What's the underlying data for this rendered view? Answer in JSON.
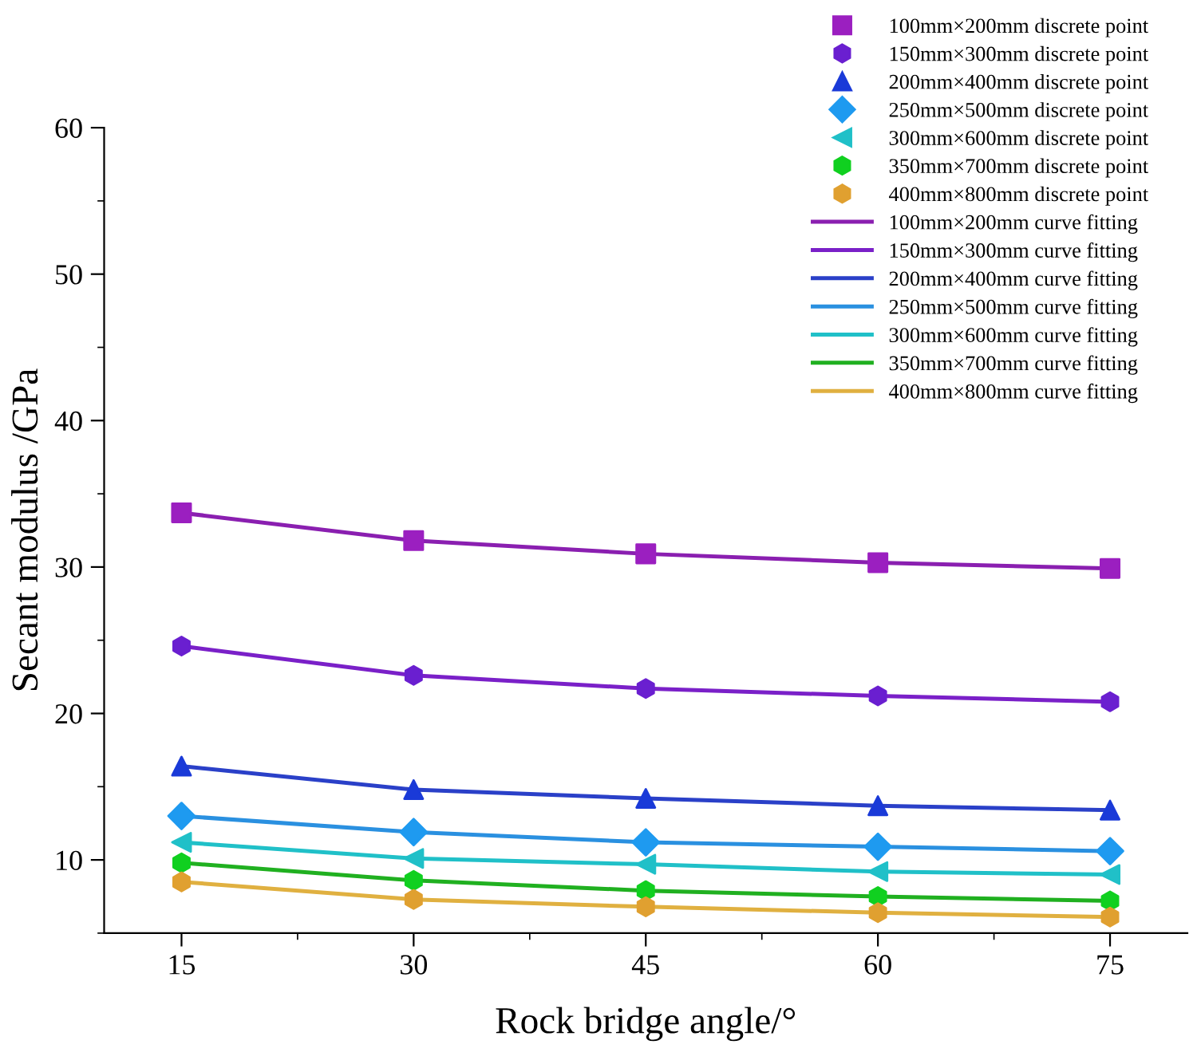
{
  "chart_data": {
    "type": "scatter",
    "xlabel": "Rock bridge angle/°",
    "ylabel": "Secant modulus /GPa",
    "x": [
      15,
      30,
      45,
      60,
      75
    ],
    "xlim": [
      10,
      80
    ],
    "xticks": [
      15,
      30,
      45,
      60,
      75
    ],
    "ylim": [
      5,
      60
    ],
    "yticks": [
      10,
      20,
      30,
      40,
      50,
      60
    ],
    "grid": false,
    "legend": "top right",
    "series": [
      {
        "name": "100mm×200mm discrete point",
        "marker": "square",
        "color": "#9b1fc0",
        "values": [
          33.7,
          31.8,
          30.9,
          30.3,
          29.9
        ]
      },
      {
        "name": "150mm×300mm discrete point",
        "marker": "circle",
        "color": "#6a1fd0",
        "values": [
          24.6,
          22.6,
          21.7,
          21.2,
          20.8
        ]
      },
      {
        "name": "200mm×400mm discrete point",
        "marker": "triangle",
        "color": "#1a3ad8",
        "values": [
          16.4,
          14.8,
          14.2,
          13.7,
          13.4
        ]
      },
      {
        "name": "250mm×500mm discrete point",
        "marker": "diamond",
        "color": "#1e9af0",
        "values": [
          13.0,
          11.9,
          11.2,
          10.9,
          10.6
        ]
      },
      {
        "name": "300mm×600mm discrete point",
        "marker": "triangle_left",
        "color": "#20c0c8",
        "values": [
          11.2,
          10.1,
          9.7,
          9.2,
          9.0
        ]
      },
      {
        "name": "350mm×700mm discrete point",
        "marker": "circle",
        "color": "#10d020",
        "values": [
          9.8,
          8.6,
          7.9,
          7.5,
          7.2
        ]
      },
      {
        "name": "400mm×800mm discrete point",
        "marker": "circle",
        "color": "#e0a030",
        "values": [
          8.5,
          7.3,
          6.8,
          6.4,
          6.1
        ]
      },
      {
        "name": "100mm×200mm curve fitting",
        "type": "line",
        "color": "#8a1fb0",
        "values": [
          33.7,
          31.8,
          30.9,
          30.3,
          29.9
        ]
      },
      {
        "name": "150mm×300mm curve fitting",
        "type": "line",
        "color": "#7a20c8",
        "values": [
          24.6,
          22.6,
          21.7,
          21.2,
          20.8
        ]
      },
      {
        "name": "200mm×400mm curve fitting",
        "type": "line",
        "color": "#2a40c8",
        "values": [
          16.4,
          14.8,
          14.2,
          13.7,
          13.4
        ]
      },
      {
        "name": "250mm×500mm curve fitting",
        "type": "line",
        "color": "#2a90e0",
        "values": [
          13.0,
          11.9,
          11.2,
          10.9,
          10.6
        ]
      },
      {
        "name": "300mm×600mm curve fitting",
        "type": "line",
        "color": "#20c0c8",
        "values": [
          11.2,
          10.1,
          9.7,
          9.2,
          9.0
        ]
      },
      {
        "name": "350mm×700mm curve fitting",
        "type": "line",
        "color": "#20b020",
        "values": [
          9.8,
          8.6,
          7.9,
          7.5,
          7.2
        ]
      },
      {
        "name": "400mm×800mm curve fitting",
        "type": "line",
        "color": "#e0b040",
        "values": [
          8.5,
          7.3,
          6.8,
          6.4,
          6.1
        ]
      }
    ]
  }
}
